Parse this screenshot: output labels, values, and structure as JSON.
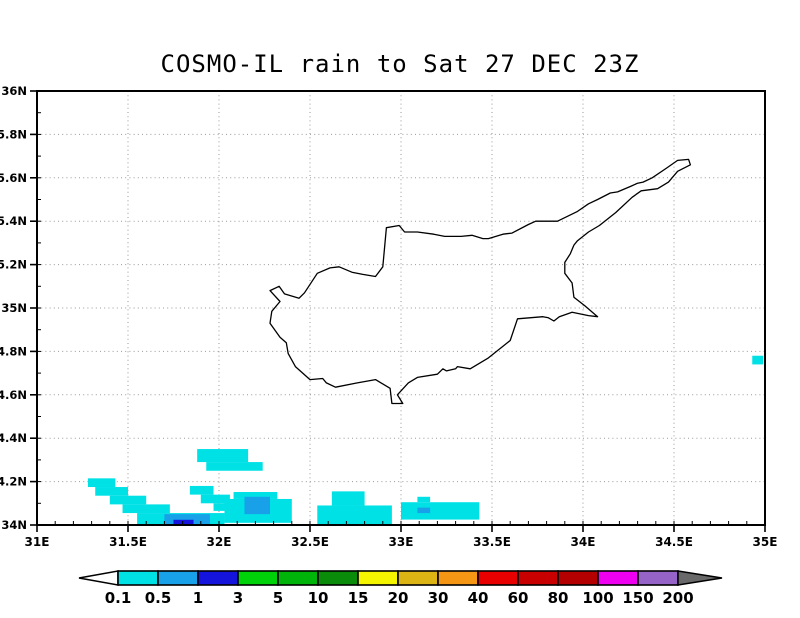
{
  "title": "COSMO-IL rain to Sat 27 DEC 23Z",
  "chart_data": {
    "type": "heatmap",
    "title": "COSMO-IL rain to Sat 27 DEC 23Z",
    "x_axis": {
      "range": [
        31,
        35
      ],
      "ticks": [
        {
          "label": "31E",
          "value": 31.0
        },
        {
          "label": "31.5E",
          "value": 31.5
        },
        {
          "label": "32E",
          "value": 32.0
        },
        {
          "label": "32.5E",
          "value": 32.5
        },
        {
          "label": "33E",
          "value": 33.0
        },
        {
          "label": "33.5E",
          "value": 33.5
        },
        {
          "label": "34E",
          "value": 34.0
        },
        {
          "label": "34.5E",
          "value": 34.5
        },
        {
          "label": "35E",
          "value": 35.0
        }
      ],
      "minor_tick_step": 0.1
    },
    "y_axis": {
      "range": [
        34,
        36
      ],
      "ticks": [
        {
          "label": "36N",
          "value": 36.0
        },
        {
          "label": "35.8N",
          "value": 35.8
        },
        {
          "label": "35.6N",
          "value": 35.6
        },
        {
          "label": "35.4N",
          "value": 35.4
        },
        {
          "label": "35.2N",
          "value": 35.2
        },
        {
          "label": "35N",
          "value": 35.0
        },
        {
          "label": "34.8N",
          "value": 34.8
        },
        {
          "label": "34.6N",
          "value": 34.6
        },
        {
          "label": "34.4N",
          "value": 34.4
        },
        {
          "label": "34.2N",
          "value": 34.2
        },
        {
          "label": "34N",
          "value": 34.0
        }
      ],
      "minor_tick_step": 0.1
    },
    "grid": {
      "style": "dotted",
      "color": "#999999",
      "lon_step": 0.5,
      "lat_step": 0.2
    },
    "colorbar": {
      "labels": [
        "0.1",
        "0.5",
        "1",
        "3",
        "5",
        "10",
        "15",
        "20",
        "30",
        "40",
        "60",
        "80",
        "100",
        "150",
        "200"
      ],
      "colors": [
        "#00E1E6",
        "#18A0E8",
        "#1414DC",
        "#00D20A",
        "#00B40A",
        "#0A8C0A",
        "#F5F500",
        "#DCB414",
        "#F59614",
        "#E80000",
        "#C80000",
        "#B40000",
        "#F000F0",
        "#9664C8"
      ],
      "under_arrow_color": "#FFFFFF",
      "over_arrow_color": "#696969"
    },
    "rain_cells": [
      {
        "lon": [
          31.88,
          32.16
        ],
        "lat": [
          34.29,
          34.35
        ],
        "c": 0
      },
      {
        "lon": [
          31.93,
          32.24
        ],
        "lat": [
          34.25,
          34.29
        ],
        "c": 0
      },
      {
        "lon": [
          31.28,
          31.43
        ],
        "lat": [
          34.175,
          34.215
        ],
        "c": 0
      },
      {
        "lon": [
          31.32,
          31.5
        ],
        "lat": [
          34.135,
          34.175
        ],
        "c": 0
      },
      {
        "lon": [
          31.4,
          31.6
        ],
        "lat": [
          34.095,
          34.135
        ],
        "c": 0
      },
      {
        "lon": [
          31.47,
          31.73
        ],
        "lat": [
          34.055,
          34.095
        ],
        "c": 0
      },
      {
        "lon": [
          31.55,
          32.03
        ],
        "lat": [
          34.0,
          34.055
        ],
        "c": 0
      },
      {
        "lon": [
          31.7,
          31.95
        ],
        "lat": [
          34.0,
          34.05
        ],
        "c": 1
      },
      {
        "lon": [
          31.75,
          31.86
        ],
        "lat": [
          34.0,
          34.024
        ],
        "c": 2
      },
      {
        "lon": [
          31.84,
          31.97
        ],
        "lat": [
          34.14,
          34.18
        ],
        "c": 0
      },
      {
        "lon": [
          31.9,
          32.06
        ],
        "lat": [
          34.1,
          34.14
        ],
        "c": 0
      },
      {
        "lon": [
          31.97,
          32.06
        ],
        "lat": [
          34.065,
          34.1
        ],
        "c": 0
      },
      {
        "lon": [
          32.03,
          32.4
        ],
        "lat": [
          34.01,
          34.12
        ],
        "c": 0
      },
      {
        "lon": [
          32.08,
          32.32
        ],
        "lat": [
          34.12,
          34.152
        ],
        "c": 0
      },
      {
        "lon": [
          32.14,
          32.28
        ],
        "lat": [
          34.05,
          34.13
        ],
        "c": 1
      },
      {
        "lon": [
          32.54,
          32.95
        ],
        "lat": [
          34.0,
          34.09
        ],
        "c": 0
      },
      {
        "lon": [
          32.62,
          32.8
        ],
        "lat": [
          34.09,
          34.155
        ],
        "c": 0
      },
      {
        "lon": [
          33.0,
          33.43
        ],
        "lat": [
          34.025,
          34.105
        ],
        "c": 0
      },
      {
        "lon": [
          33.09,
          33.16
        ],
        "lat": [
          34.105,
          34.13
        ],
        "c": 0
      },
      {
        "lon": [
          33.09,
          33.16
        ],
        "lat": [
          34.055,
          34.08
        ],
        "c": 1
      },
      {
        "lon": [
          34.93,
          34.99
        ],
        "lat": [
          34.74,
          34.78
        ],
        "c": 0
      }
    ],
    "coastline": [
      [
        32.28,
        35.08
      ],
      [
        32.33,
        35.1
      ],
      [
        32.36,
        35.065
      ],
      [
        32.44,
        35.045
      ],
      [
        32.47,
        35.07
      ],
      [
        32.54,
        35.16
      ],
      [
        32.61,
        35.185
      ],
      [
        32.66,
        35.19
      ],
      [
        32.73,
        35.165
      ],
      [
        32.79,
        35.155
      ],
      [
        32.86,
        35.145
      ],
      [
        32.9,
        35.19
      ],
      [
        32.92,
        35.37
      ],
      [
        32.99,
        35.38
      ],
      [
        33.02,
        35.35
      ],
      [
        33.09,
        35.35
      ],
      [
        33.18,
        35.34
      ],
      [
        33.24,
        35.33
      ],
      [
        33.33,
        35.33
      ],
      [
        33.39,
        35.335
      ],
      [
        33.45,
        35.32
      ],
      [
        33.48,
        35.32
      ],
      [
        33.56,
        35.34
      ],
      [
        33.61,
        35.345
      ],
      [
        33.7,
        35.385
      ],
      [
        33.74,
        35.4
      ],
      [
        33.86,
        35.4
      ],
      [
        33.97,
        35.445
      ],
      [
        34.03,
        35.48
      ],
      [
        34.08,
        35.5
      ],
      [
        34.15,
        35.53
      ],
      [
        34.19,
        35.535
      ],
      [
        34.26,
        35.56
      ],
      [
        34.3,
        35.575
      ],
      [
        34.33,
        35.58
      ],
      [
        34.38,
        35.6
      ],
      [
        34.46,
        35.645
      ],
      [
        34.52,
        35.68
      ],
      [
        34.58,
        35.685
      ],
      [
        34.59,
        35.66
      ],
      [
        34.52,
        35.63
      ],
      [
        34.47,
        35.58
      ],
      [
        34.41,
        35.55
      ],
      [
        34.32,
        35.54
      ],
      [
        34.27,
        35.51
      ],
      [
        34.18,
        35.44
      ],
      [
        34.09,
        35.38
      ],
      [
        34.03,
        35.35
      ],
      [
        33.97,
        35.31
      ],
      [
        33.95,
        35.29
      ],
      [
        33.93,
        35.25
      ],
      [
        33.9,
        35.21
      ],
      [
        33.9,
        35.16
      ],
      [
        33.94,
        35.115
      ],
      [
        33.95,
        35.05
      ],
      [
        34.01,
        35.01
      ],
      [
        34.08,
        34.96
      ],
      [
        34.03,
        34.965
      ],
      [
        33.94,
        34.98
      ],
      [
        33.87,
        34.96
      ],
      [
        33.84,
        34.94
      ],
      [
        33.81,
        34.955
      ],
      [
        33.78,
        34.96
      ],
      [
        33.64,
        34.95
      ],
      [
        33.6,
        34.85
      ],
      [
        33.48,
        34.77
      ],
      [
        33.38,
        34.72
      ],
      [
        33.31,
        34.73
      ],
      [
        33.3,
        34.72
      ],
      [
        33.25,
        34.71
      ],
      [
        33.23,
        34.72
      ],
      [
        33.2,
        34.695
      ],
      [
        33.09,
        34.68
      ],
      [
        33.04,
        34.655
      ],
      [
        32.98,
        34.6
      ],
      [
        33.01,
        34.56
      ],
      [
        32.95,
        34.56
      ],
      [
        32.94,
        34.63
      ],
      [
        32.86,
        34.67
      ],
      [
        32.76,
        34.655
      ],
      [
        32.64,
        34.635
      ],
      [
        32.59,
        34.655
      ],
      [
        32.57,
        34.675
      ],
      [
        32.5,
        34.67
      ],
      [
        32.42,
        34.73
      ],
      [
        32.38,
        34.79
      ],
      [
        32.37,
        34.84
      ],
      [
        32.335,
        34.865
      ],
      [
        32.28,
        34.93
      ],
      [
        32.29,
        34.985
      ],
      [
        32.335,
        35.03
      ],
      [
        32.28,
        35.08
      ]
    ]
  }
}
